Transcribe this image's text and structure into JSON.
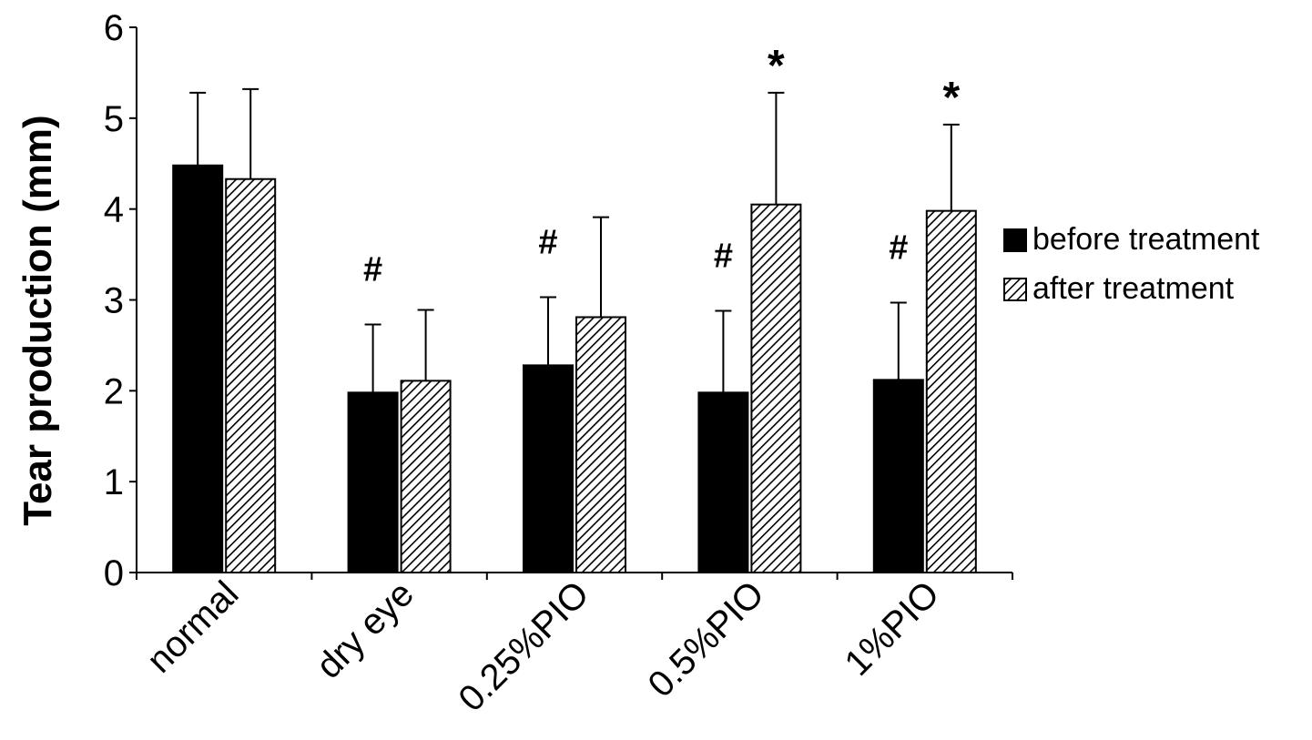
{
  "chart_data": {
    "type": "bar",
    "ylabel": "Tear production (mm)",
    "xlabel": "",
    "ylim": [
      0,
      6
    ],
    "yticks": [
      "0",
      "1",
      "2",
      "3",
      "4",
      "5",
      "6"
    ],
    "categories": [
      "normal",
      "dry eye",
      "0.25%PIO",
      "0.5%PIO",
      "1%PIO"
    ],
    "series": [
      {
        "name": "before treatment",
        "fill": "solid",
        "color": "#000000",
        "values": [
          4.48,
          1.98,
          2.28,
          1.98,
          2.12
        ],
        "error": [
          0.8,
          0.75,
          0.75,
          0.9,
          0.85
        ]
      },
      {
        "name": "after treatment",
        "fill": "hatched",
        "color": "#000000",
        "values": [
          4.33,
          2.11,
          2.81,
          4.05,
          3.98
        ],
        "error": [
          0.99,
          0.78,
          1.1,
          1.23,
          0.95
        ]
      }
    ],
    "annotations": [
      {
        "category": "dry eye",
        "series": "before treatment",
        "text": "#"
      },
      {
        "category": "0.25%PIO",
        "series": "before treatment",
        "text": "#"
      },
      {
        "category": "0.5%PIO",
        "series": "before treatment",
        "text": "#"
      },
      {
        "category": "0.5%PIO",
        "series": "after treatment",
        "text": "*"
      },
      {
        "category": "1%PIO",
        "series": "before treatment",
        "text": "#"
      },
      {
        "category": "1%PIO",
        "series": "after treatment",
        "text": "*"
      }
    ],
    "legend": {
      "placement": "right"
    },
    "grid": false
  }
}
